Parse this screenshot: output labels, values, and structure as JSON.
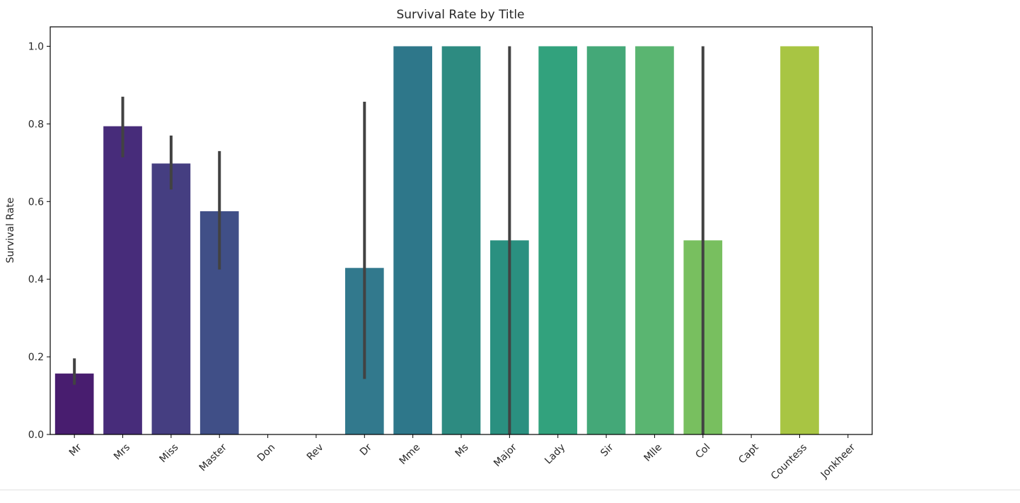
{
  "chart_data": {
    "type": "bar",
    "title": "Survival Rate by Title",
    "xlabel": "",
    "ylabel": "Survival Rate",
    "ylim": [
      0,
      1.05
    ],
    "yticks": [
      0.0,
      0.2,
      0.4,
      0.6,
      0.8,
      1.0
    ],
    "ytick_labels": [
      "0.0",
      "0.2",
      "0.4",
      "0.6",
      "0.8",
      "1.0"
    ],
    "grid": false,
    "legend": "none",
    "categories": [
      "Mr",
      "Mrs",
      "Miss",
      "Master",
      "Don",
      "Rev",
      "Dr",
      "Mme",
      "Ms",
      "Major",
      "Lady",
      "Sir",
      "Mlle",
      "Col",
      "Capt",
      "Countess",
      "Jonkheer"
    ],
    "values": [
      0.157,
      0.794,
      0.698,
      0.575,
      0.0,
      0.0,
      0.429,
      1.0,
      1.0,
      0.5,
      1.0,
      1.0,
      1.0,
      0.5,
      0.0,
      1.0,
      0.0
    ],
    "error_bars": [
      [
        0.128,
        0.196
      ],
      [
        0.714,
        0.87
      ],
      [
        0.631,
        0.77
      ],
      [
        0.425,
        0.73
      ],
      null,
      null,
      [
        0.143,
        0.857
      ],
      null,
      null,
      [
        0.0,
        1.0
      ],
      null,
      null,
      null,
      [
        0.0,
        1.0
      ],
      null,
      null,
      null
    ],
    "colors": [
      "#481d6f",
      "#472c7a",
      "#453e81",
      "#404f87",
      "#3b5e8b",
      "#356c8d",
      "#32798d",
      "#2e778a",
      "#2d8b81",
      "#2a9080",
      "#32a27d",
      "#44a878",
      "#5ab571",
      "#78bf5f",
      "#9acb4b",
      "#a8c543",
      "#c9d53a"
    ],
    "error_color": "#424242"
  }
}
